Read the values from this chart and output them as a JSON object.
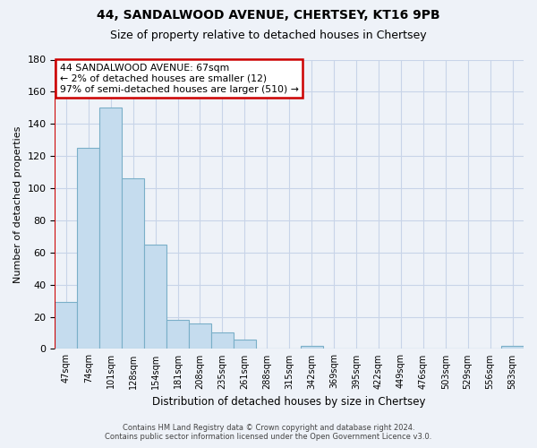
{
  "title": "44, SANDALWOOD AVENUE, CHERTSEY, KT16 9PB",
  "subtitle": "Size of property relative to detached houses in Chertsey",
  "xlabel": "Distribution of detached houses by size in Chertsey",
  "ylabel": "Number of detached properties",
  "bar_labels": [
    "47sqm",
    "74sqm",
    "101sqm",
    "128sqm",
    "154sqm",
    "181sqm",
    "208sqm",
    "235sqm",
    "261sqm",
    "288sqm",
    "315sqm",
    "342sqm",
    "369sqm",
    "395sqm",
    "422sqm",
    "449sqm",
    "476sqm",
    "503sqm",
    "529sqm",
    "556sqm",
    "583sqm"
  ],
  "bar_values": [
    29,
    125,
    150,
    106,
    65,
    18,
    16,
    10,
    6,
    0,
    0,
    2,
    0,
    0,
    0,
    0,
    0,
    0,
    0,
    0,
    2
  ],
  "bar_color": "#c5dcee",
  "bar_edge_color": "#7aafc8",
  "ylim": [
    0,
    180
  ],
  "yticks": [
    0,
    20,
    40,
    60,
    80,
    100,
    120,
    140,
    160,
    180
  ],
  "annotation_title": "44 SANDALWOOD AVENUE: 67sqm",
  "annotation_line1": "← 2% of detached houses are smaller (12)",
  "annotation_line2": "97% of semi-detached houses are larger (510) →",
  "annotation_box_color": "white",
  "annotation_box_edge": "#cc0000",
  "red_line_x": 0,
  "footer_line1": "Contains HM Land Registry data © Crown copyright and database right 2024.",
  "footer_line2": "Contains public sector information licensed under the Open Government Licence v3.0.",
  "background_color": "#eef2f8",
  "grid_color": "#c8d4e8",
  "title_fontsize": 10,
  "subtitle_fontsize": 9
}
